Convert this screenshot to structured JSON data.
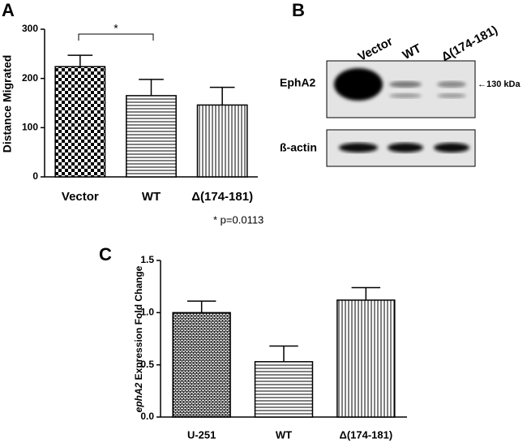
{
  "chart_data": [
    {
      "type": "bar",
      "panel": "A",
      "y_label": "Distance Migrated",
      "categories": [
        "Vector",
        "WT",
        "Δ(174-181)"
      ],
      "values": [
        224,
        165,
        146
      ],
      "errors": [
        23,
        33,
        36
      ],
      "patterns": [
        "checker",
        "hlines",
        "vlines"
      ],
      "ylim": [
        0,
        300
      ],
      "yticks": [
        0,
        100,
        200,
        300
      ],
      "annotations": [
        "*",
        "* p=0.0113"
      ]
    },
    {
      "type": "bar",
      "panel": "C",
      "y_label_italic": "ephA2",
      "y_label": "Expression Fold Change",
      "categories": [
        "U-251",
        "WT",
        "Δ(174-181)"
      ],
      "values": [
        1.0,
        0.53,
        1.12
      ],
      "errors": [
        0.11,
        0.15,
        0.12
      ],
      "patterns": [
        "brick",
        "hlines",
        "vlines"
      ],
      "ylim": [
        0,
        1.5
      ],
      "yticks": [
        {
          "value": 0,
          "label": "0.0"
        },
        {
          "value": 0.5,
          "label": "0.5"
        },
        {
          "value": 1,
          "label": "1.0"
        },
        {
          "value": 1.5,
          "label": "1.5"
        }
      ]
    }
  ],
  "blot": {
    "panel": "B",
    "lanes": [
      "Vector",
      "WT",
      "Δ(174-181)"
    ],
    "rows": [
      "EphA2",
      "ß-actin"
    ],
    "marker": "←130 kDa"
  }
}
